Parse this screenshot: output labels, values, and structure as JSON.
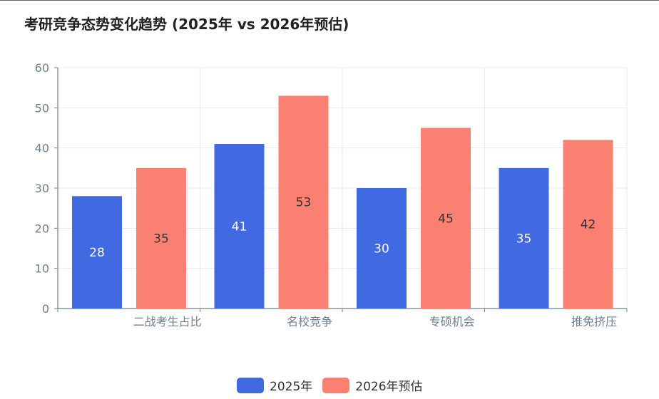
{
  "title": "考研竞争态势变化趋势 (2025年 vs 2026年预估)",
  "colors": {
    "series_2025": "#4169e1",
    "series_2026": "#fa8072",
    "axis": "#6e7f8d",
    "grid": "#e6e9f5"
  },
  "chart_data": {
    "type": "bar",
    "title": "考研竞争态势变化趋势 (2025年 vs 2026年预估)",
    "categories": [
      "二战考生占比",
      "名校竞争",
      "专硕机会",
      "推免挤压"
    ],
    "series": [
      {
        "name": "2025年",
        "values": [
          28,
          41,
          30,
          35
        ],
        "label_color": "#ffffff"
      },
      {
        "name": "2026年预估",
        "values": [
          35,
          53,
          45,
          42
        ],
        "label_color": "#333333"
      }
    ],
    "ylim": [
      0,
      60
    ],
    "yticks": [
      0,
      10,
      20,
      30,
      40,
      50,
      60
    ],
    "xlabel": "",
    "ylabel": "",
    "grid": true,
    "legend_position": "bottom-center",
    "data_labels": "inside-middle"
  }
}
